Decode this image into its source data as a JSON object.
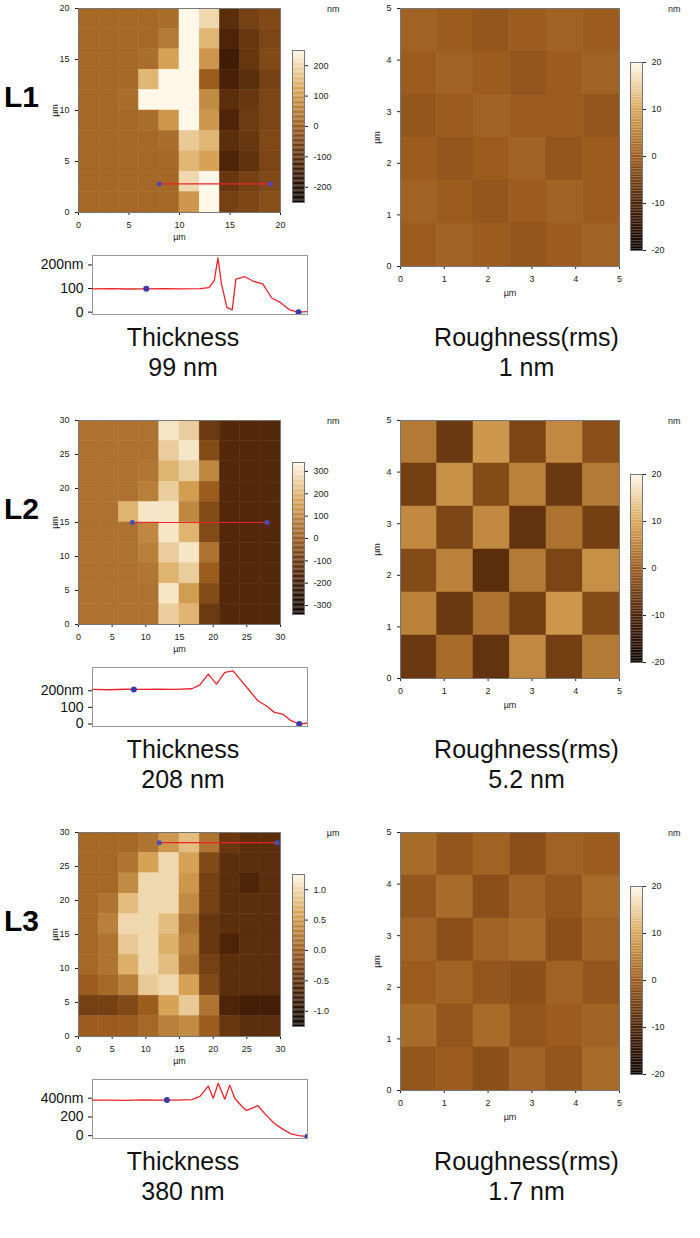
{
  "chart_data": [
    {
      "type": "heatmap",
      "panel_label": "L1",
      "xlabel": "µm",
      "ylabel": "µm",
      "xlim": [
        0,
        20
      ],
      "ylim": [
        0,
        20
      ],
      "xticks": [
        0,
        5,
        10,
        15,
        20
      ],
      "yticks": [
        0,
        5,
        10,
        15,
        20
      ],
      "color_label": "nm",
      "color_range": [
        -250,
        250
      ],
      "color_ticks": [
        -200,
        -100,
        0,
        100,
        200
      ],
      "scan_line": {
        "x1": 8,
        "x2": 19,
        "y": 2.8
      },
      "cells": [
        [
          20,
          20,
          20,
          20,
          30,
          250,
          200,
          -100,
          -60,
          -40
        ],
        [
          20,
          20,
          20,
          20,
          50,
          250,
          150,
          -120,
          -80,
          -50
        ],
        [
          20,
          20,
          20,
          30,
          120,
          250,
          100,
          -150,
          -80,
          -40
        ],
        [
          20,
          20,
          20,
          150,
          250,
          250,
          0,
          -130,
          -100,
          -60
        ],
        [
          20,
          20,
          30,
          250,
          250,
          250,
          80,
          -100,
          -80,
          -50
        ],
        [
          20,
          20,
          20,
          30,
          100,
          250,
          100,
          -120,
          -70,
          -50
        ],
        [
          20,
          20,
          20,
          20,
          30,
          180,
          150,
          -100,
          -80,
          -40
        ],
        [
          20,
          20,
          20,
          20,
          20,
          150,
          120,
          -120,
          -90,
          -50
        ],
        [
          20,
          20,
          20,
          20,
          20,
          200,
          250,
          -80,
          -60,
          -40
        ],
        [
          20,
          20,
          20,
          20,
          20,
          100,
          250,
          -60,
          -50,
          -30
        ]
      ]
    },
    {
      "type": "line",
      "caption": "Thickness",
      "caption_value": "99 nm",
      "color": "#e8242a",
      "tick_labels": "y",
      "xlim": [
        0,
        12
      ],
      "ylim": [
        -10,
        240
      ],
      "yticks": [
        0,
        100,
        {
          "value": 200,
          "label": "200nm"
        }
      ],
      "x": [
        0,
        1,
        2,
        3,
        4,
        5,
        6,
        6.5,
        6.8,
        7.0,
        7.2,
        7.5,
        7.8,
        8.0,
        8.5,
        9.0,
        9.5,
        10,
        10.5,
        11,
        11.5,
        12
      ],
      "values": [
        99,
        100,
        98,
        99,
        100,
        99,
        100,
        104,
        135,
        230,
        120,
        20,
        10,
        140,
        150,
        130,
        120,
        60,
        40,
        10,
        0,
        2
      ],
      "cursors": [
        {
          "x": 3,
          "y": 99
        },
        {
          "x": 11.5,
          "y": 0
        }
      ]
    },
    {
      "type": "heatmap",
      "caption": "Roughness(rms)",
      "caption_value": "1 nm",
      "xlabel": "µm",
      "ylabel": "µm",
      "xlim": [
        0,
        5
      ],
      "ylim": [
        0,
        5
      ],
      "xticks": [
        0,
        1,
        2,
        3,
        4,
        5
      ],
      "yticks": [
        0,
        1,
        2,
        3,
        4,
        5
      ],
      "color_label": "nm",
      "color_range": [
        -20,
        20
      ],
      "color_ticks": [
        -20,
        -10,
        0,
        10,
        20
      ],
      "cells": [
        [
          1,
          0,
          -1,
          0,
          1,
          0
        ],
        [
          0,
          1,
          0,
          -1,
          0,
          1
        ],
        [
          -1,
          0,
          1,
          0,
          0,
          -1
        ],
        [
          0,
          -1,
          0,
          1,
          -1,
          0
        ],
        [
          1,
          0,
          -1,
          0,
          1,
          0
        ],
        [
          0,
          1,
          0,
          -1,
          0,
          1
        ]
      ]
    },
    {
      "type": "heatmap",
      "panel_label": "L2",
      "xlabel": "µm",
      "ylabel": "µm",
      "xlim": [
        0,
        30
      ],
      "ylim": [
        0,
        30
      ],
      "xticks": [
        0,
        5,
        10,
        15,
        20,
        25,
        30
      ],
      "yticks": [
        0,
        5,
        10,
        15,
        20,
        25,
        30
      ],
      "color_label": "nm",
      "color_range": [
        -340,
        340
      ],
      "color_ticks": [
        -300,
        -200,
        -100,
        0,
        100,
        200,
        300
      ],
      "scan_line": {
        "x1": 8,
        "x2": 28,
        "y": 15
      },
      "cells": [
        [
          50,
          50,
          50,
          50,
          300,
          250,
          -100,
          -150,
          -150,
          -150
        ],
        [
          50,
          50,
          50,
          50,
          250,
          300,
          -50,
          -150,
          -150,
          -150
        ],
        [
          50,
          50,
          50,
          60,
          200,
          250,
          100,
          -150,
          -150,
          -150
        ],
        [
          50,
          50,
          50,
          80,
          250,
          150,
          0,
          -150,
          -150,
          -150
        ],
        [
          50,
          50,
          200,
          300,
          300,
          100,
          -50,
          -150,
          -150,
          -150
        ],
        [
          50,
          50,
          50,
          100,
          300,
          200,
          -50,
          -150,
          -150,
          -150
        ],
        [
          50,
          50,
          50,
          80,
          250,
          300,
          50,
          -150,
          -150,
          -150
        ],
        [
          50,
          50,
          50,
          60,
          200,
          250,
          0,
          -150,
          -150,
          -150
        ],
        [
          50,
          50,
          50,
          50,
          300,
          150,
          -50,
          -150,
          -150,
          -150
        ],
        [
          50,
          50,
          50,
          50,
          250,
          200,
          -100,
          -150,
          -150,
          -150
        ]
      ]
    },
    {
      "type": "line",
      "caption": "Thickness",
      "caption_value": "208 nm",
      "color": "#e8242a",
      "tick_labels": "y",
      "xlim": [
        0,
        13
      ],
      "ylim": [
        -15,
        340
      ],
      "yticks": [
        0,
        100,
        {
          "value": 200,
          "label": "200nm"
        }
      ],
      "x": [
        0,
        1,
        2,
        3,
        4,
        5,
        6,
        6.5,
        7.0,
        7.5,
        8.0,
        8.5,
        9.0,
        9.5,
        10,
        10.5,
        11,
        11.5,
        12,
        12.5,
        13
      ],
      "values": [
        208,
        206,
        209,
        208,
        210,
        208,
        212,
        235,
        300,
        240,
        310,
        320,
        260,
        200,
        140,
        110,
        70,
        60,
        20,
        0,
        5
      ],
      "cursors": [
        {
          "x": 2.5,
          "y": 208
        },
        {
          "x": 12.5,
          "y": 0
        }
      ]
    },
    {
      "type": "heatmap",
      "caption": "Roughness(rms)",
      "caption_value": "5.2 nm",
      "xlabel": "µm",
      "ylabel": "µm",
      "xlim": [
        0,
        5
      ],
      "ylim": [
        0,
        5
      ],
      "xticks": [
        0,
        1,
        2,
        3,
        4,
        5
      ],
      "yticks": [
        0,
        1,
        2,
        3,
        4,
        5
      ],
      "color_label": "nm",
      "color_range": [
        -20,
        20
      ],
      "color_ticks": [
        -20,
        -10,
        0,
        10,
        20
      ],
      "cells": [
        [
          4,
          -6,
          8,
          -4,
          6,
          -2
        ],
        [
          -5,
          7,
          -3,
          5,
          -6,
          4
        ],
        [
          6,
          -4,
          6,
          -7,
          3,
          -5
        ],
        [
          -3,
          5,
          -8,
          4,
          -4,
          7
        ],
        [
          5,
          -6,
          3,
          -5,
          8,
          -3
        ],
        [
          -6,
          2,
          -7,
          6,
          -5,
          4
        ]
      ]
    },
    {
      "type": "heatmap",
      "panel_label": "L3",
      "xlabel": "µm",
      "ylabel": "µm",
      "xlim": [
        0,
        30
      ],
      "ylim": [
        0,
        30
      ],
      "xticks": [
        0,
        5,
        10,
        15,
        20,
        25,
        30
      ],
      "yticks": [
        0,
        5,
        10,
        15,
        20,
        25,
        30
      ],
      "color_label": "µm",
      "color_range": [
        -1.25,
        1.25
      ],
      "color_ticks": [
        {
          "value": -1,
          "label": "-1.0"
        },
        -0.5,
        {
          "value": 0,
          "label": "0.0"
        },
        0.5,
        {
          "value": 1,
          "label": "1.0"
        }
      ],
      "scan_line": {
        "x1": 12,
        "x2": 29.5,
        "y": 28.5
      },
      "cells": [
        [
          0.1,
          0.1,
          0.1,
          0.2,
          0.5,
          0.8,
          0.2,
          -0.4,
          -0.5,
          -0.5
        ],
        [
          0.1,
          0.1,
          0.2,
          0.6,
          1.0,
          0.6,
          -0.2,
          -0.5,
          -0.5,
          -0.5
        ],
        [
          0.1,
          0.1,
          0.4,
          1.0,
          1.0,
          0.5,
          -0.3,
          -0.5,
          -0.6,
          -0.5
        ],
        [
          0.1,
          0.2,
          0.8,
          1.0,
          1.0,
          0.4,
          -0.3,
          -0.5,
          -0.5,
          -0.5
        ],
        [
          0.1,
          0.3,
          1.0,
          1.0,
          0.8,
          0.2,
          -0.4,
          -0.5,
          -0.5,
          -0.5
        ],
        [
          0.1,
          0.2,
          0.9,
          1.0,
          0.7,
          0.3,
          -0.4,
          -0.6,
          -0.5,
          -0.5
        ],
        [
          0.1,
          0.2,
          0.7,
          1.0,
          0.8,
          0.2,
          -0.3,
          -0.5,
          -0.5,
          -0.5
        ],
        [
          0.0,
          0.1,
          0.3,
          0.9,
          1.0,
          0.6,
          -0.2,
          -0.5,
          -0.5,
          -0.5
        ],
        [
          -0.3,
          -0.3,
          -0.2,
          0.0,
          0.6,
          0.9,
          0.2,
          -0.6,
          -0.7,
          -0.7
        ],
        [
          0.0,
          0.0,
          0.0,
          0.1,
          0.3,
          0.4,
          0.0,
          -0.4,
          -0.5,
          -0.5
        ]
      ]
    },
    {
      "type": "line",
      "caption": "Thickness",
      "caption_value": "380 nm",
      "color": "#e8242a",
      "tick_labels": "y",
      "xlim": [
        0,
        13
      ],
      "ylim": [
        -30,
        600
      ],
      "yticks": [
        0,
        200,
        {
          "value": 400,
          "label": "400nm"
        }
      ],
      "x": [
        0,
        1,
        2,
        3,
        4,
        5,
        6,
        6.5,
        7.0,
        7.3,
        7.6,
        8.0,
        8.3,
        8.6,
        9.0,
        9.3,
        9.6,
        10,
        10.5,
        11,
        11.5,
        12,
        12.5,
        13
      ],
      "values": [
        380,
        380,
        378,
        382,
        380,
        380,
        385,
        420,
        530,
        400,
        560,
        390,
        540,
        400,
        320,
        270,
        290,
        320,
        220,
        130,
        70,
        20,
        0,
        -10
      ],
      "cursors": [
        {
          "x": 4.5,
          "y": 380
        },
        {
          "x": 13,
          "y": -10
        }
      ]
    },
    {
      "type": "heatmap",
      "caption": "Roughness(rms)",
      "caption_value": "1.7 nm",
      "xlabel": "µm",
      "ylabel": "µm",
      "xlim": [
        0,
        5
      ],
      "ylim": [
        0,
        5
      ],
      "xticks": [
        0,
        1,
        2,
        3,
        4,
        5
      ],
      "yticks": [
        0,
        1,
        2,
        3,
        4,
        5
      ],
      "color_label": "nm",
      "color_range": [
        -20,
        20
      ],
      "color_ticks": [
        -20,
        -10,
        0,
        10,
        20
      ],
      "cells": [
        [
          2,
          -1,
          1,
          -2,
          1,
          0
        ],
        [
          -1,
          2,
          -2,
          1,
          -1,
          2
        ],
        [
          1,
          -2,
          1,
          2,
          -2,
          1
        ],
        [
          0,
          1,
          -1,
          -2,
          1,
          -1
        ],
        [
          2,
          -1,
          2,
          -1,
          0,
          1
        ],
        [
          -1,
          0,
          -2,
          1,
          -1,
          2
        ]
      ]
    }
  ]
}
